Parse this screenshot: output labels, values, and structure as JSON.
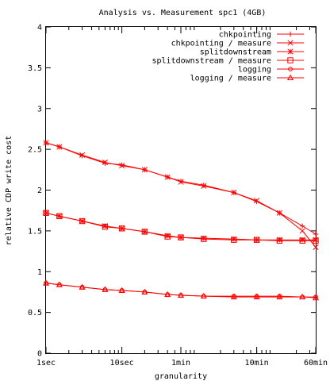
{
  "chart_data": {
    "type": "line",
    "title": "Analysis vs. Measurement spc1 (4GB)",
    "xlabel": "granularity",
    "ylabel": "relative CDP write cost",
    "x_scale": "log",
    "x_unit": "seconds",
    "xlim": [
      1,
      3600
    ],
    "ylim": [
      0,
      4
    ],
    "x_ticks": [
      {
        "value": 1,
        "label": "1sec"
      },
      {
        "value": 10,
        "label": "10sec"
      },
      {
        "value": 60,
        "label": "1min"
      },
      {
        "value": 600,
        "label": "10min"
      },
      {
        "value": 3600,
        "label": "60min"
      }
    ],
    "y_ticks": [
      {
        "value": 0,
        "label": "0"
      },
      {
        "value": 0.5,
        "label": "0.5"
      },
      {
        "value": 1,
        "label": "1"
      },
      {
        "value": 1.5,
        "label": "1.5"
      },
      {
        "value": 2,
        "label": "2"
      },
      {
        "value": 2.5,
        "label": "2.5"
      },
      {
        "value": 3,
        "label": "3"
      },
      {
        "value": 3.5,
        "label": "3.5"
      },
      {
        "value": 4,
        "label": "4"
      }
    ],
    "legend_position": "top-right",
    "color": "#ff0000",
    "series": [
      {
        "name": "chkpointing",
        "marker": "plus",
        "x": [
          1,
          1.5,
          3,
          6,
          10,
          20,
          40,
          60,
          120,
          300,
          600,
          1200,
          2400,
          3600
        ],
        "y": [
          2.58,
          2.53,
          2.42,
          2.33,
          2.31,
          2.25,
          2.16,
          2.11,
          2.06,
          1.97,
          1.86,
          1.72,
          1.56,
          1.46
        ]
      },
      {
        "name": "chkpointing / measure",
        "marker": "cross",
        "x": [
          1,
          1.5,
          3,
          6,
          10,
          20,
          40,
          60,
          120,
          300,
          600,
          1200,
          2400,
          3600
        ],
        "y": [
          2.58,
          2.53,
          2.43,
          2.34,
          2.3,
          2.25,
          2.16,
          2.1,
          2.05,
          1.97,
          1.87,
          1.72,
          1.5,
          1.3
        ]
      },
      {
        "name": "splitdownstream",
        "marker": "asterisk",
        "x": [
          1,
          1.5,
          3,
          6,
          10,
          20,
          40,
          60,
          120,
          300,
          600,
          1200,
          2400,
          3600
        ],
        "y": [
          1.72,
          1.68,
          1.62,
          1.56,
          1.53,
          1.49,
          1.44,
          1.42,
          1.41,
          1.4,
          1.39,
          1.39,
          1.39,
          1.39
        ]
      },
      {
        "name": "splitdownstream / measure",
        "marker": "square",
        "x": [
          1,
          1.5,
          3,
          6,
          10,
          20,
          40,
          60,
          120,
          300,
          600,
          1200,
          2400,
          3600
        ],
        "y": [
          1.72,
          1.68,
          1.62,
          1.55,
          1.53,
          1.49,
          1.43,
          1.42,
          1.4,
          1.39,
          1.39,
          1.38,
          1.38,
          1.38
        ]
      },
      {
        "name": "logging",
        "marker": "circle",
        "x": [
          1,
          1.5,
          3,
          6,
          10,
          20,
          40,
          60,
          120,
          300,
          600,
          1200,
          2400,
          3600
        ],
        "y": [
          0.86,
          0.84,
          0.81,
          0.78,
          0.77,
          0.75,
          0.72,
          0.71,
          0.7,
          0.7,
          0.7,
          0.7,
          0.69,
          0.69
        ]
      },
      {
        "name": "logging / measure",
        "marker": "triangle",
        "x": [
          1,
          1.5,
          3,
          6,
          10,
          20,
          40,
          60,
          120,
          300,
          600,
          1200,
          2400,
          3600
        ],
        "y": [
          0.86,
          0.84,
          0.81,
          0.78,
          0.77,
          0.75,
          0.72,
          0.71,
          0.7,
          0.69,
          0.69,
          0.69,
          0.69,
          0.68
        ]
      }
    ]
  }
}
